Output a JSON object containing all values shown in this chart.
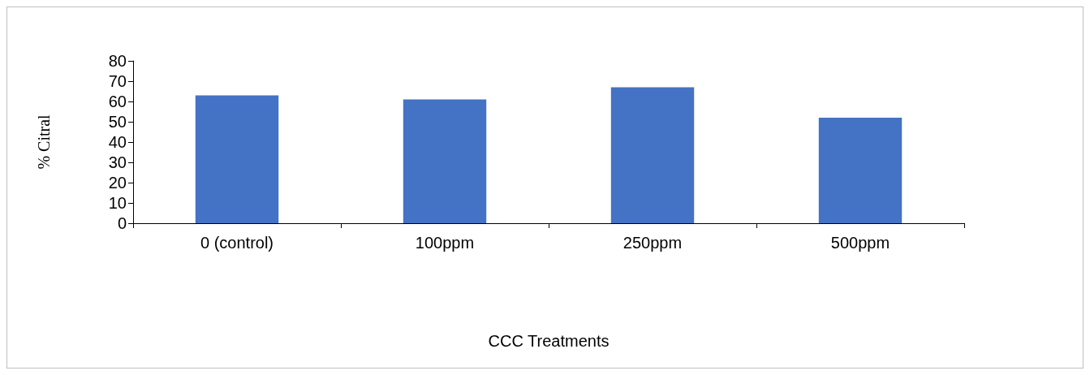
{
  "chart_data": {
    "type": "bar",
    "xlabel": "CCC Treatments",
    "ylabel": "% Citral",
    "categories": [
      "0 (control)",
      "100ppm",
      "250ppm",
      "500ppm"
    ],
    "values": [
      63,
      61,
      67,
      52
    ],
    "color": "#4472c4",
    "ylim": [
      0,
      80
    ],
    "yticks": [
      0,
      10,
      20,
      30,
      40,
      50,
      60,
      70,
      80
    ],
    "grid": false
  }
}
